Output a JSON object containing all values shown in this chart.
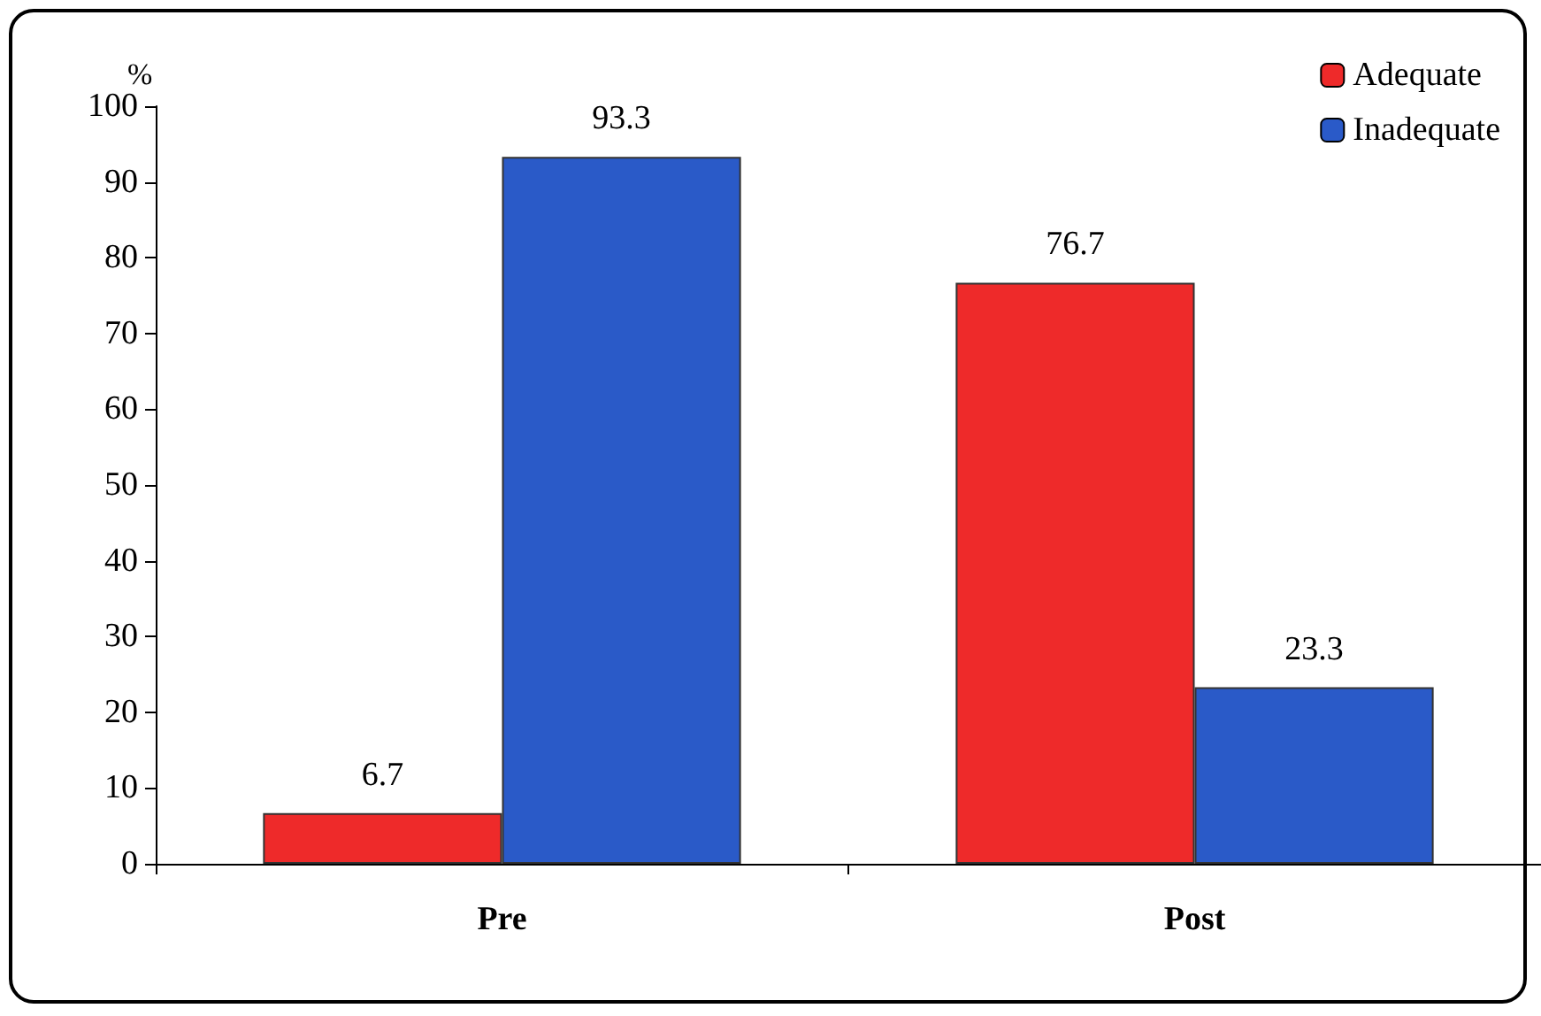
{
  "chart_data": {
    "type": "bar",
    "ylabel": "%",
    "categories": [
      "Pre",
      "Post"
    ],
    "series": [
      {
        "name": "Adequate",
        "color": "#ee2a2a",
        "values": [
          6.7,
          76.7
        ]
      },
      {
        "name": "Inadequate",
        "color": "#2a5ac8",
        "values": [
          93.3,
          23.3
        ]
      }
    ],
    "ylim": [
      0,
      100
    ],
    "yticks": [
      0,
      10,
      20,
      30,
      40,
      50,
      60,
      70,
      80,
      90,
      100
    ],
    "data_labels": true,
    "legend": "top right",
    "grid": false
  }
}
